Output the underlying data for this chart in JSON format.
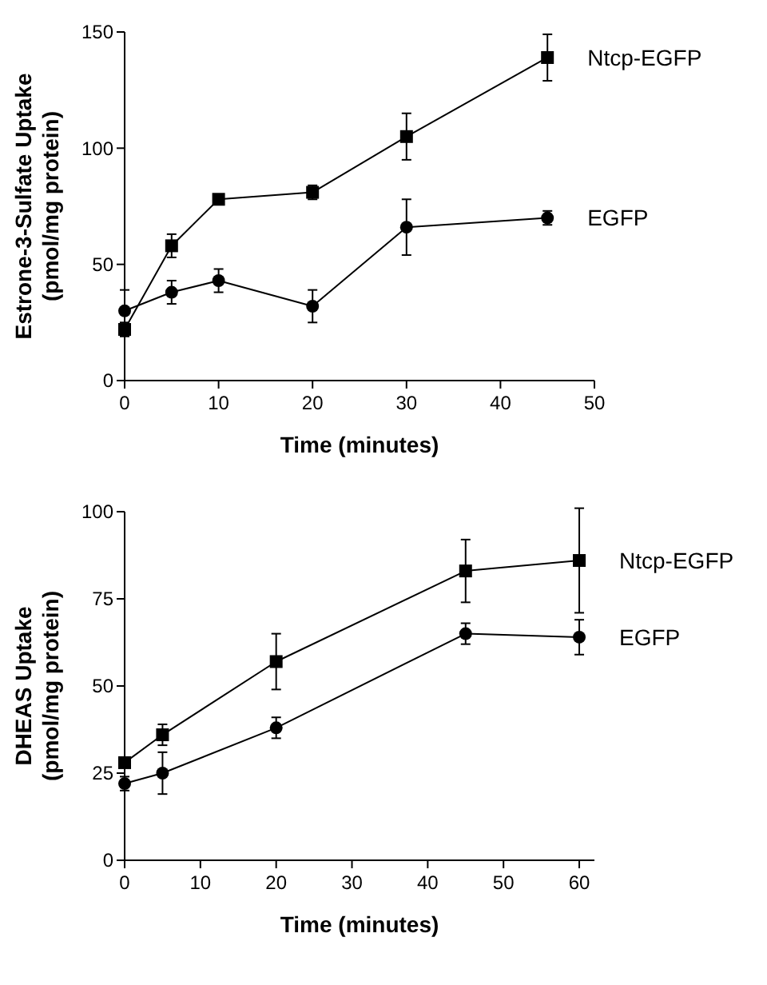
{
  "chart_data": [
    {
      "type": "line",
      "xlabel": "Time (minutes)",
      "ylabel": "Estrone-3-Sulfate Uptake\n(pmol/mg protein)",
      "x": [
        0,
        5,
        10,
        20,
        30,
        45
      ],
      "xlim": [
        0,
        50
      ],
      "xticks": [
        0,
        10,
        20,
        30,
        40,
        50
      ],
      "ylim": [
        0,
        150
      ],
      "yticks": [
        0,
        50,
        100,
        150
      ],
      "series": [
        {
          "name": "Ntcp-EGFP",
          "color": "#000000",
          "marker": "square",
          "values": [
            22,
            58,
            78,
            81,
            105,
            139
          ],
          "errors": [
            3,
            5,
            1,
            3,
            10,
            10
          ]
        },
        {
          "name": "EGFP",
          "color": "#000000",
          "marker": "circle",
          "values": [
            30,
            38,
            43,
            32,
            66,
            70
          ],
          "errors": [
            9,
            5,
            5,
            7,
            12,
            3
          ]
        }
      ]
    },
    {
      "type": "line",
      "xlabel": "Time (minutes)",
      "ylabel": "DHEAS Uptake\n(pmol/mg protein)",
      "x": [
        0,
        5,
        20,
        45,
        60
      ],
      "xlim": [
        0,
        62
      ],
      "xticks": [
        0,
        10,
        20,
        30,
        40,
        50,
        60
      ],
      "ylim": [
        0,
        100
      ],
      "yticks": [
        0,
        25,
        50,
        75,
        100
      ],
      "series": [
        {
          "name": "Ntcp-EGFP",
          "color": "#000000",
          "marker": "square",
          "values": [
            28,
            36,
            57,
            83,
            86
          ],
          "errors": [
            1,
            3,
            8,
            9,
            15
          ]
        },
        {
          "name": "EGFP",
          "color": "#000000",
          "marker": "circle",
          "values": [
            22,
            25,
            38,
            65,
            64
          ],
          "errors": [
            2,
            6,
            3,
            3,
            5
          ]
        }
      ]
    }
  ]
}
